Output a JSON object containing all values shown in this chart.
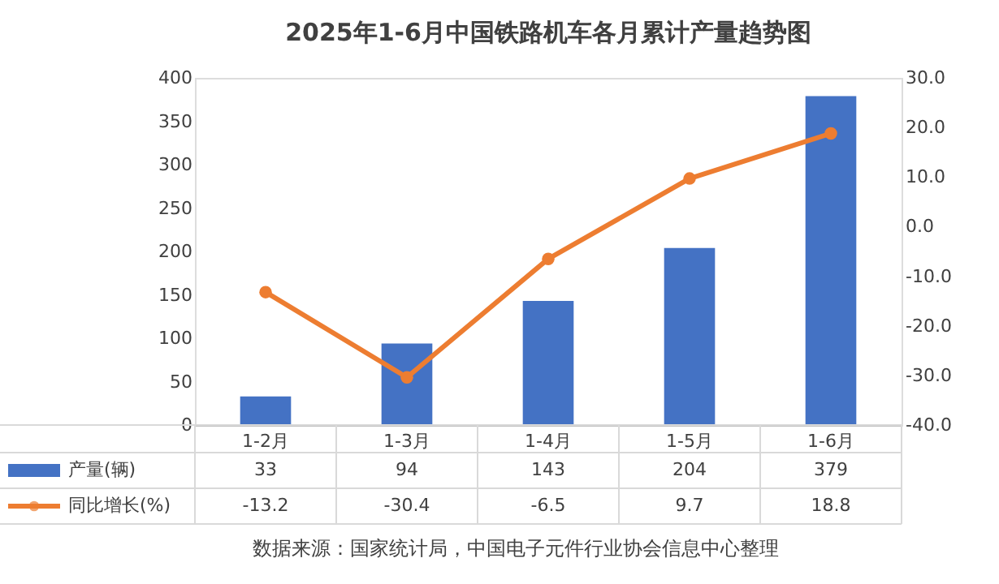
{
  "chart_data": {
    "type": "bar",
    "title": "2025年1-6月中国铁路机车各月累计产量趋势图",
    "categories": [
      "1-2月",
      "1-3月",
      "1-4月",
      "1-5月",
      "1-6月"
    ],
    "series": [
      {
        "name": "产量(辆)",
        "color": "#4472c4",
        "values": [
          33,
          94,
          143,
          204,
          379
        ]
      },
      {
        "name": "同比增长(%)",
        "type": "line",
        "axis": "y2",
        "color": "#ed7d31",
        "values": [
          -13.2,
          -30.4,
          -6.5,
          9.7,
          18.8
        ]
      }
    ],
    "ylim": [
      0,
      400
    ],
    "yticks": [
      0,
      50,
      100,
      150,
      200,
      250,
      300,
      350,
      400
    ],
    "y2lim": [
      -40,
      30
    ],
    "y2ticks": [
      {
        "value": -40,
        "label": "-40.0"
      },
      {
        "value": -30,
        "label": "-30.0"
      },
      {
        "value": -20,
        "label": "-20.0"
      },
      {
        "value": -10,
        "label": "-10.0"
      },
      {
        "value": 0,
        "label": "0.0"
      },
      {
        "value": 10,
        "label": "10.0"
      },
      {
        "value": 20,
        "label": "20.0"
      },
      {
        "value": 30,
        "label": "30.0"
      }
    ],
    "data_labels": true,
    "legend": "bottom left",
    "marker": "circle",
    "line_style": "solid",
    "grid": false,
    "annotations": [
      "数据来源：国家统计局，中国电子元件行业协会信息中心整理"
    ]
  }
}
